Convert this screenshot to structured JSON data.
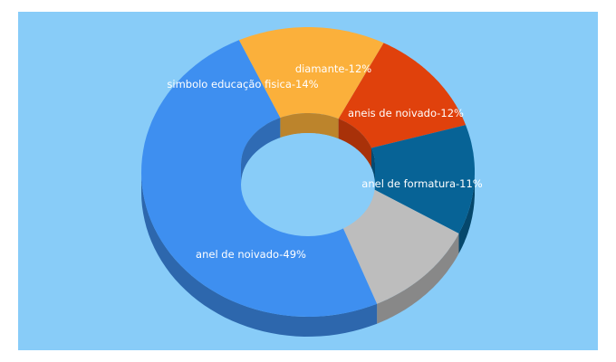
{
  "background_color": "#88ccf8",
  "chart_data": {
    "type": "pie",
    "variant": "3d-donut",
    "title": "",
    "legend": "none",
    "slices": [
      {
        "label": "diamante-12%",
        "value": 12,
        "color": "#e0410c"
      },
      {
        "label": "aneis de noivado-12%",
        "value": 12,
        "color": "#076396"
      },
      {
        "label": "anel de formatura-11%",
        "value": 11,
        "color": "#bdbdbd"
      },
      {
        "label": "anel de noivado-49%",
        "value": 49,
        "color": "#3e8ff0"
      },
      {
        "label": "simbolo educação fisica-14%",
        "value": 14,
        "color": "#fbb03b"
      }
    ]
  }
}
